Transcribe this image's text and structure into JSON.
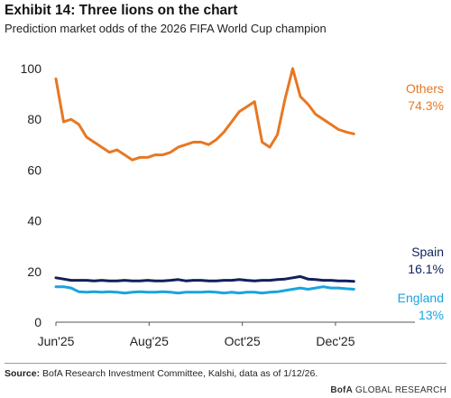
{
  "header": {
    "title": "Exhibit 14: Three lions on the chart",
    "subtitle": "Prediction market odds of the 2026 FIFA World Cup champion"
  },
  "footer": {
    "source_label": "Source:",
    "source_text": " BofA Research Investment Committee, Kalshi, data as of 1/12/26.",
    "brand_bold": "BofA",
    "brand_rest": " GLOBAL RESEARCH"
  },
  "chart_data": {
    "type": "line",
    "ylim": [
      0,
      105
    ],
    "yticks": [
      0,
      20,
      40,
      60,
      80,
      100
    ],
    "ytick_labels": [
      "0",
      "20",
      "40",
      "60",
      "80",
      "100"
    ],
    "xticks": [
      {
        "label": "Jun'25",
        "x": 0
      },
      {
        "label": "Aug'25",
        "x": 61
      },
      {
        "label": "Oct'25",
        "x": 122
      },
      {
        "label": "Dec'25",
        "x": 183
      }
    ],
    "xlim": [
      0,
      235
    ],
    "x_step_days": 5,
    "series": [
      {
        "name": "Others",
        "end_label": "74.3%",
        "color": "#e87722",
        "values": [
          96,
          79,
          80,
          78,
          73,
          71,
          69,
          67,
          68,
          66,
          64,
          65,
          65,
          66,
          66,
          67,
          69,
          70,
          71,
          71,
          70,
          72,
          75,
          79,
          83,
          85,
          87,
          71,
          69,
          74,
          88,
          100,
          89,
          86,
          82,
          80,
          78,
          76,
          75,
          74.3
        ]
      },
      {
        "name": "Spain",
        "end_label": "16.1%",
        "color": "#10205e",
        "values": [
          17.5,
          17,
          16.5,
          16.5,
          16.5,
          16.3,
          16.5,
          16.3,
          16.3,
          16.5,
          16.3,
          16.3,
          16.5,
          16.3,
          16.3,
          16.5,
          16.8,
          16.3,
          16.5,
          16.5,
          16.3,
          16.3,
          16.5,
          16.5,
          16.8,
          16.5,
          16.3,
          16.5,
          16.5,
          16.8,
          17,
          17.5,
          18,
          17,
          16.8,
          16.5,
          16.5,
          16.3,
          16.3,
          16.1
        ]
      },
      {
        "name": "England",
        "end_label": "13%",
        "color": "#19a5de",
        "values": [
          14,
          14,
          13.5,
          12,
          11.8,
          12,
          11.8,
          12,
          11.8,
          11.5,
          11.8,
          12,
          11.8,
          11.8,
          12,
          11.8,
          11.5,
          11.8,
          11.8,
          11.8,
          12,
          11.8,
          11.5,
          11.8,
          11.5,
          11.8,
          11.8,
          11.5,
          11.8,
          12,
          12.5,
          13,
          13.5,
          13,
          13.5,
          14,
          13.5,
          13.5,
          13.2,
          13
        ]
      }
    ]
  }
}
